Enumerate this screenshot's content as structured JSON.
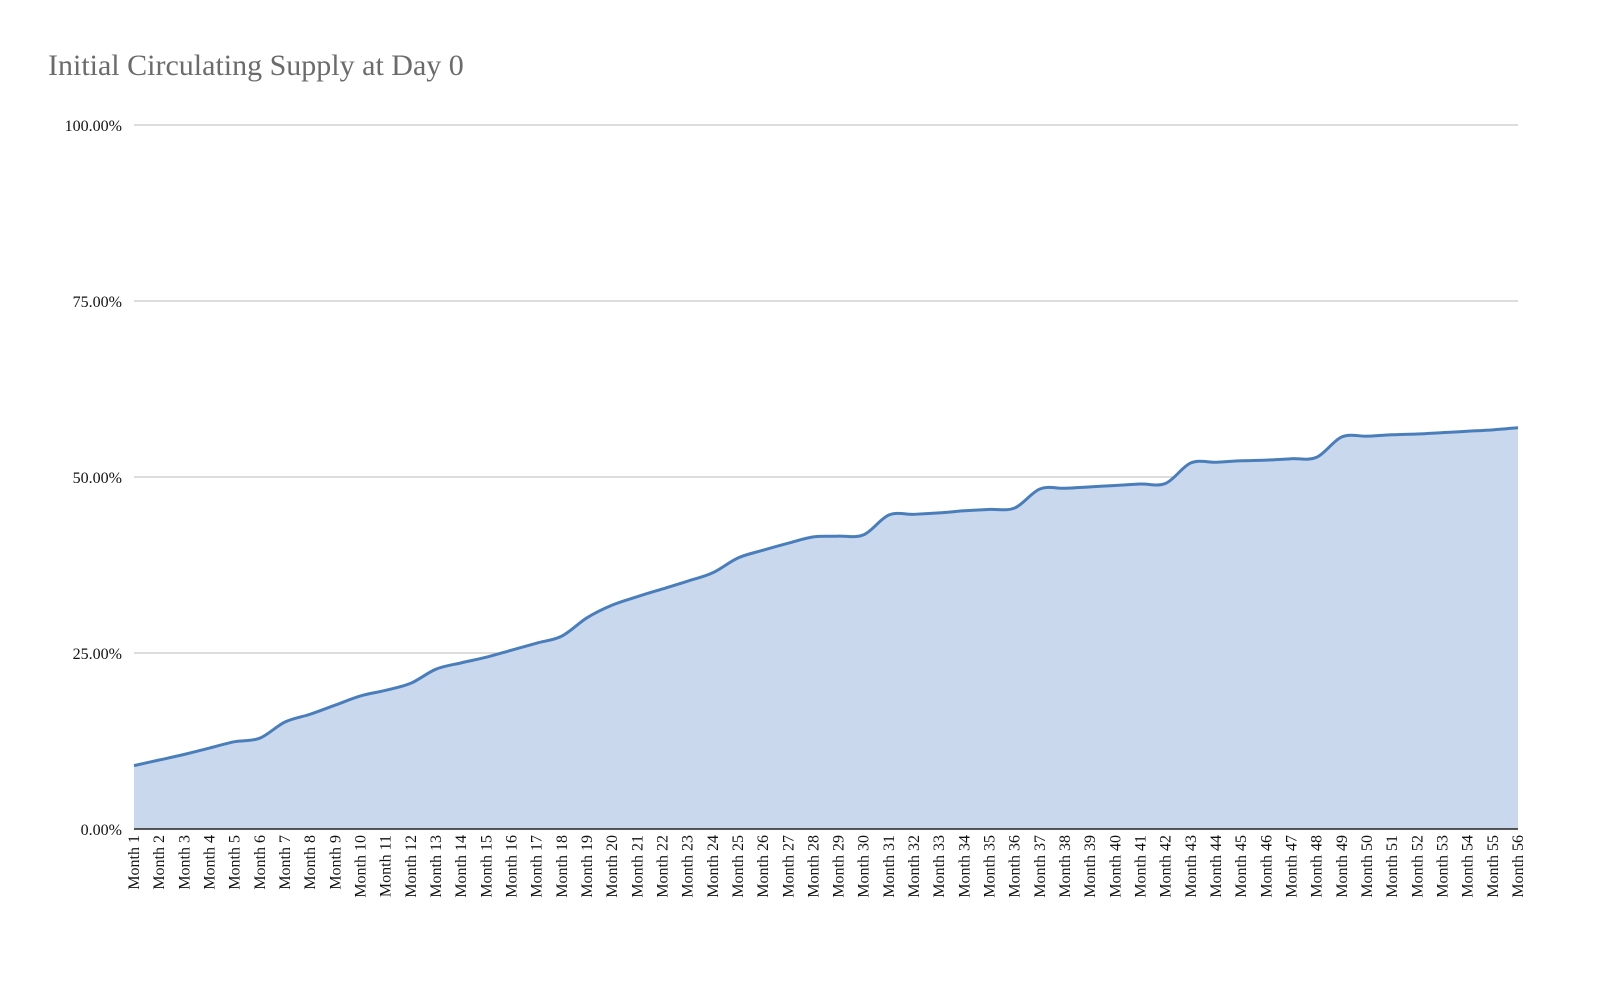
{
  "chart_data": {
    "type": "area",
    "title": "Initial Circulating Supply at Day 0",
    "xlabel": "",
    "ylabel": "",
    "ylim": [
      0,
      100
    ],
    "yticks": [
      "0.00%",
      "25.00%",
      "50.00%",
      "75.00%",
      "100.00%"
    ],
    "ytick_values": [
      0,
      25,
      50,
      75,
      100
    ],
    "grid": true,
    "legend": "none",
    "colors": {
      "line": "#4a7ebb",
      "fill": "#c9d8ec",
      "grid": "#c8c8c8",
      "axis": "#222222"
    },
    "categories": [
      "Month 1",
      "Month 2",
      "Month 3",
      "Month 4",
      "Month 5",
      "Month 6",
      "Month 7",
      "Month 8",
      "Month 9",
      "Month 10",
      "Month 11",
      "Month 12",
      "Month 13",
      "Month 14",
      "Month 15",
      "Month 16",
      "Month 17",
      "Month 18",
      "Month 19",
      "Month 20",
      "Month 21",
      "Month 22",
      "Month 23",
      "Month 24",
      "Month 25",
      "Month 26",
      "Month 27",
      "Month 28",
      "Month 29",
      "Month 30",
      "Month 31",
      "Month 32",
      "Month 33",
      "Month 34",
      "Month 35",
      "Month 36",
      "Month 37",
      "Month 38",
      "Month 39",
      "Month 40",
      "Month 41",
      "Month 42",
      "Month 43",
      "Month 44",
      "Month 45",
      "Month 46",
      "Month 47",
      "Month 48",
      "Month 49",
      "Month 50",
      "Month 51",
      "Month 52",
      "Month 53",
      "Month 54",
      "Month 55",
      "Month 56"
    ],
    "values": [
      9.0,
      9.8,
      10.6,
      11.5,
      12.4,
      12.9,
      15.2,
      16.3,
      17.6,
      18.9,
      19.7,
      20.7,
      22.7,
      23.6,
      24.4,
      25.4,
      26.4,
      27.4,
      30.0,
      31.8,
      33.0,
      34.1,
      35.2,
      36.4,
      38.5,
      39.6,
      40.6,
      41.5,
      41.6,
      41.8,
      44.6,
      44.7,
      44.9,
      45.2,
      45.4,
      45.6,
      48.3,
      48.4,
      48.6,
      48.8,
      49.0,
      49.1,
      52.0,
      52.1,
      52.3,
      52.4,
      52.6,
      52.8,
      55.7,
      55.8,
      56.0,
      56.1,
      56.3,
      56.5,
      56.7,
      57.0
    ]
  }
}
